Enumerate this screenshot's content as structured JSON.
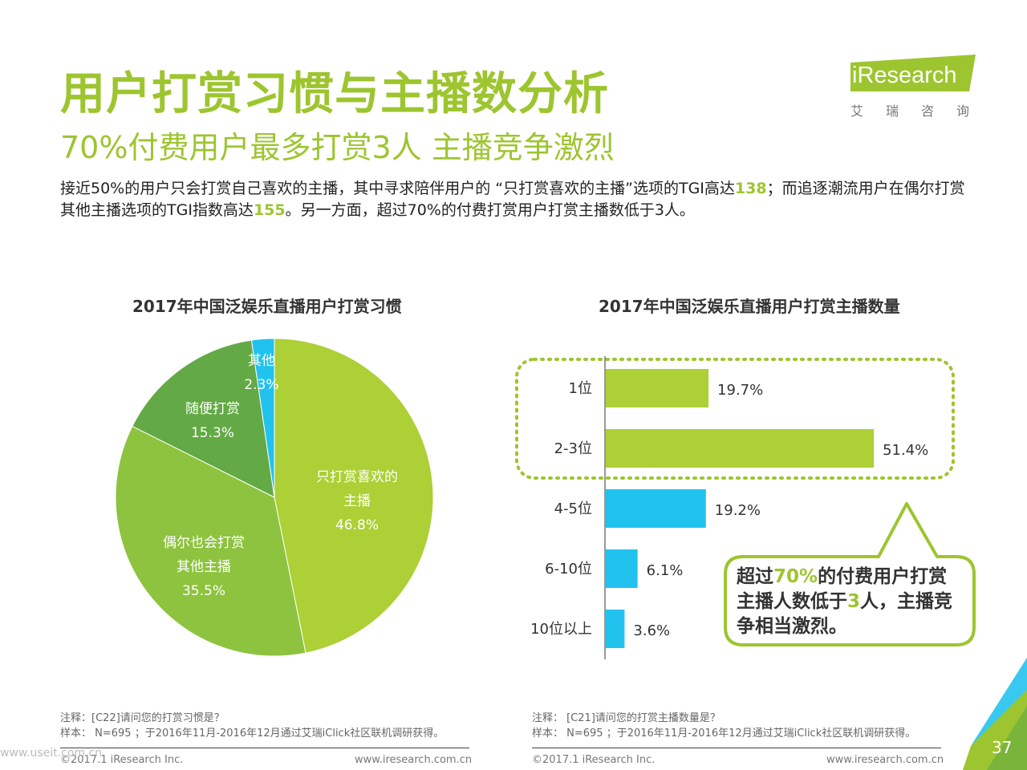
{
  "title": "用户打赏习惯与主播数分析",
  "subtitle": "70%付费用户最多打赏3人 主播竞争激烈",
  "summary": {
    "part1": "接近50%的用户只会打赏自己喜欢的主播，其中寻求陪伴用户的 “只打赏喜欢的主播”选项的TGI高达",
    "tgi1": "138",
    "part2": "；而追逐潮流用户在偶尔打赏其他主播选项的TGI指数高达",
    "tgi2": "155",
    "part3": "。另一方面，超过70%的付费打赏用户打赏主播数低于3人。"
  },
  "logo": {
    "text": "iResearch",
    "cn": "艾瑞咨询"
  },
  "chart_data": [
    {
      "type": "pie",
      "title": "2017年中国泛娱乐直播用户打赏习惯",
      "slices": [
        {
          "label_lines": [
            "只打赏喜欢的",
            "主播"
          ],
          "value": 46.8,
          "value_label": "46.8%",
          "color": "#acd035"
        },
        {
          "label_lines": [
            "偶尔也会打赏",
            "其他主播"
          ],
          "value": 35.5,
          "value_label": "35.5%",
          "color": "#8dc33f"
        },
        {
          "label_lines": [
            "随便打赏"
          ],
          "value": 15.3,
          "value_label": "15.3%",
          "color": "#63a945"
        },
        {
          "label_lines": [
            "其他"
          ],
          "value": 2.3,
          "value_label": "2.3%",
          "color": "#22c2ee"
        }
      ]
    },
    {
      "type": "bar",
      "orientation": "horizontal",
      "title": "2017年中国泛娱乐直播用户打赏主播数量",
      "categories": [
        "1位",
        "2-3位",
        "4-5位",
        "6-10位",
        "10位以上"
      ],
      "values": [
        19.7,
        51.4,
        19.2,
        6.1,
        3.6
      ],
      "value_labels": [
        "19.7%",
        "51.4%",
        "19.2%",
        "6.1%",
        "3.6%"
      ],
      "colors": [
        "#acd035",
        "#acd035",
        "#22c2ee",
        "#22c2ee",
        "#22c2ee"
      ],
      "xlim": [
        0,
        60
      ],
      "highlight_box_categories": [
        "1位",
        "2-3位"
      ]
    }
  ],
  "callout": {
    "t1": "超过",
    "h1": "70%",
    "t2": "的付费用户打赏主播人数低于",
    "h2": "3",
    "t3": "人，主播竞争相当激烈。"
  },
  "notes_left": {
    "line1": "注释：[C22]请问您的打赏习惯是？",
    "line2": "样本： N=695 ；于2016年11月-2016年12月通过艾瑞iClick社区联机调研获得。",
    "copyright": "©2017.1 iResearch Inc.",
    "url": "www.iresearch.com.cn"
  },
  "notes_right": {
    "line1": "注释： [C21]请问您的打赏主播数量是？",
    "line2": "样本： N=695 ；于2016年11月-2016年12月通过艾瑞iClick社区联机调研获得。",
    "copyright": "©2017.1 iResearch Inc.",
    "url": "www.iresearch.com.cn"
  },
  "page_number": "37",
  "watermark": "www.useit.com.cn",
  "colors": {
    "brand_green": "#9dc52f",
    "accent_blue": "#22c2ee"
  }
}
